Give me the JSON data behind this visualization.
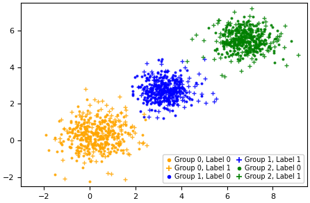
{
  "group_params": [
    {
      "color": "#FFA500",
      "c0": [
        0.3,
        0.2
      ],
      "c1": [
        0.5,
        0.3
      ],
      "n0": 300,
      "n1": 120,
      "std0x": 0.7,
      "std0y": 0.65,
      "std1x": 0.9,
      "std1y": 0.85
    },
    {
      "color": "#0000FF",
      "c0": [
        3.2,
        2.8
      ],
      "c1": [
        3.5,
        2.9
      ],
      "n0": 300,
      "n1": 120,
      "std0x": 0.55,
      "std0y": 0.55,
      "std1x": 0.7,
      "std1y": 0.65
    },
    {
      "color": "#008000",
      "c0": [
        6.8,
        5.5
      ],
      "c1": [
        6.8,
        5.5
      ],
      "n0": 300,
      "n1": 120,
      "std0x": 0.6,
      "std0y": 0.5,
      "std1x": 0.85,
      "std1y": 0.75
    }
  ],
  "xlim": [
    -3.0,
    9.5
  ],
  "ylim": [
    -2.5,
    7.5
  ],
  "xticks": [
    -2,
    0,
    2,
    4,
    6,
    8
  ],
  "yticks": [
    -2,
    0,
    2,
    4,
    6
  ],
  "dot_size": 8,
  "plus_size": 25,
  "plus_lw": 1.0,
  "alpha_dot": 0.9,
  "alpha_plus": 0.85,
  "seed": 12,
  "legend_col1": [
    {
      "label": "Group 0, Label 0",
      "color": "#FFA500",
      "marker": "o"
    },
    {
      "label": "Group 1, Label 0",
      "color": "#0000FF",
      "marker": "o"
    },
    {
      "label": "Group 2, Label 0",
      "color": "#008000",
      "marker": "o"
    }
  ],
  "legend_col2": [
    {
      "label": "Group 0, Label 1",
      "color": "#FFA500",
      "marker": "+"
    },
    {
      "label": "Group 1, Label 1",
      "color": "#0000FF",
      "marker": "+"
    },
    {
      "label": "Group 2, Label 1",
      "color": "#008000",
      "marker": "+"
    }
  ],
  "legend_fontsize": 7,
  "tick_fontsize": 8
}
